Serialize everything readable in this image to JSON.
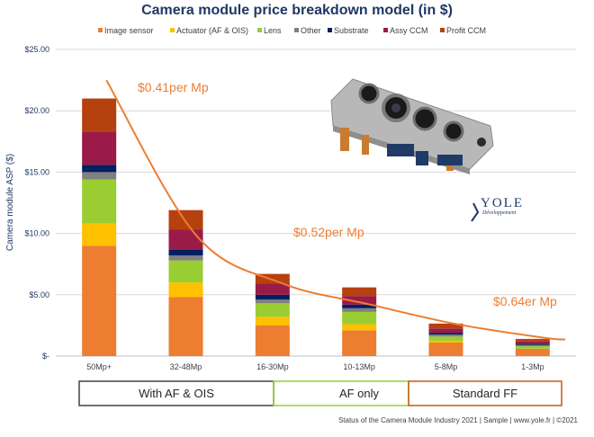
{
  "chart_data": {
    "type": "bar",
    "stacked": true,
    "title": "Camera module price breakdown model (in $)",
    "ylabel": "Camera module ASP ($)",
    "xlabel": "",
    "ylim": [
      0,
      25
    ],
    "yticks": [
      "$-",
      "$5.00",
      "$10.00",
      "$15.00",
      "$20.00",
      "$25.00"
    ],
    "grid": true,
    "legend_position": "top",
    "categories": [
      "50Mp+",
      "32-48Mp",
      "16-30Mp",
      "10-13Mp",
      "5-8Mp",
      "1-3Mp"
    ],
    "series": [
      {
        "name": "Image sensor",
        "color": "#ed7d31",
        "values": [
          9.0,
          4.8,
          2.5,
          2.1,
          1.1,
          0.6
        ]
      },
      {
        "name": "Actuator (AF & OIS)",
        "color": "#ffc000",
        "values": [
          1.8,
          1.2,
          0.7,
          0.5,
          0.15,
          0.0
        ]
      },
      {
        "name": "Lens",
        "color": "#9acd32",
        "values": [
          3.6,
          1.8,
          1.1,
          1.0,
          0.35,
          0.2
        ]
      },
      {
        "name": "Other",
        "color": "#808080",
        "values": [
          0.6,
          0.4,
          0.3,
          0.3,
          0.15,
          0.1
        ]
      },
      {
        "name": "Substrate",
        "color": "#002060",
        "values": [
          0.6,
          0.5,
          0.4,
          0.3,
          0.15,
          0.1
        ]
      },
      {
        "name": "Assy CCM",
        "color": "#9b1b48",
        "values": [
          2.7,
          1.6,
          0.9,
          0.7,
          0.35,
          0.2
        ]
      },
      {
        "name": "Profit CCM",
        "color": "#b5410f",
        "values": [
          2.7,
          1.6,
          0.8,
          0.7,
          0.4,
          0.2
        ]
      }
    ],
    "trend_curve": {
      "color": "#ed7d31",
      "values": [
        22.5,
        9.8,
        5.9,
        4.2,
        2.6,
        1.5,
        1.35
      ]
    },
    "annotations": [
      "$0.41per Mp",
      "$0.52per Mp",
      "$0.64er Mp"
    ],
    "groups": [
      "With AF & OIS",
      "AF only",
      "Standard FF"
    ],
    "group_colors": [
      "#404040",
      "#9acd32",
      "#c55a11"
    ]
  },
  "logo": {
    "text": "YOLE",
    "subtitle": "Développement"
  },
  "footer": "Status of the Camera Module Industry 2021 | Sample | www.yole.fr | ©2021"
}
